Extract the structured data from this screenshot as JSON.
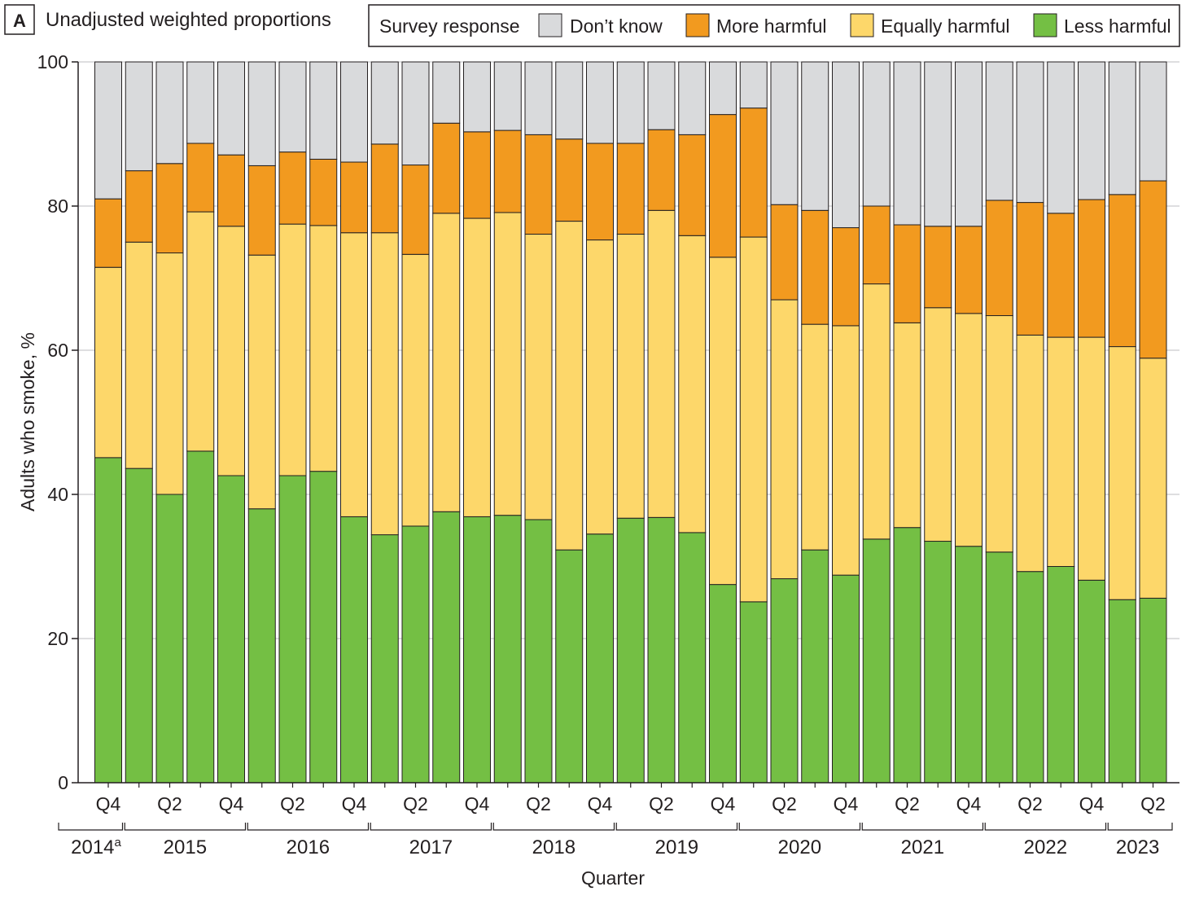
{
  "panel": {
    "letter": "A",
    "title": "Unadjusted weighted proportions"
  },
  "legend": {
    "title": "Survey response",
    "items": [
      {
        "label": "Don’t know",
        "color": "#d9dadc"
      },
      {
        "label": "More harmful",
        "color": "#f29a1f"
      },
      {
        "label": "Equally harmful",
        "color": "#fdd76a"
      },
      {
        "label": "Less harmful",
        "color": "#74bf44"
      }
    ]
  },
  "chart_data": {
    "type": "bar",
    "stacked": true,
    "title": "Unadjusted weighted proportions",
    "xlabel": "Quarter",
    "ylabel": "Adults who smoke, %",
    "ylim": [
      0,
      100
    ],
    "yticks": [
      0,
      20,
      40,
      60,
      80,
      100
    ],
    "grid": true,
    "legend_position": "top",
    "categories": [
      "2014 Q4",
      "2015 Q1",
      "2015 Q2",
      "2015 Q3",
      "2015 Q4",
      "2016 Q1",
      "2016 Q2",
      "2016 Q3",
      "2016 Q4",
      "2017 Q1",
      "2017 Q2",
      "2017 Q3",
      "2017 Q4",
      "2018 Q1",
      "2018 Q2",
      "2018 Q3",
      "2018 Q4",
      "2019 Q1",
      "2019 Q2",
      "2019 Q3",
      "2019 Q4",
      "2020 Q1",
      "2020 Q2",
      "2020 Q3",
      "2020 Q4",
      "2021 Q1",
      "2021 Q2",
      "2021 Q3",
      "2021 Q4",
      "2022 Q1",
      "2022 Q2",
      "2022 Q3",
      "2022 Q4",
      "2023 Q1",
      "2023 Q2"
    ],
    "x_tick_labels": [
      {
        "index": 0,
        "label": "Q4"
      },
      {
        "index": 2,
        "label": "Q2"
      },
      {
        "index": 4,
        "label": "Q4"
      },
      {
        "index": 6,
        "label": "Q2"
      },
      {
        "index": 8,
        "label": "Q4"
      },
      {
        "index": 10,
        "label": "Q2"
      },
      {
        "index": 12,
        "label": "Q4"
      },
      {
        "index": 14,
        "label": "Q2"
      },
      {
        "index": 16,
        "label": "Q4"
      },
      {
        "index": 18,
        "label": "Q2"
      },
      {
        "index": 20,
        "label": "Q4"
      },
      {
        "index": 22,
        "label": "Q2"
      },
      {
        "index": 24,
        "label": "Q4"
      },
      {
        "index": 26,
        "label": "Q2"
      },
      {
        "index": 28,
        "label": "Q4"
      },
      {
        "index": 30,
        "label": "Q2"
      },
      {
        "index": 32,
        "label": "Q4"
      },
      {
        "index": 34,
        "label": "Q2"
      }
    ],
    "years": [
      {
        "label": "2014",
        "superscript": "a",
        "start": 0,
        "end": 0
      },
      {
        "label": "2015",
        "start": 1,
        "end": 4
      },
      {
        "label": "2016",
        "start": 5,
        "end": 8
      },
      {
        "label": "2017",
        "start": 9,
        "end": 12
      },
      {
        "label": "2018",
        "start": 13,
        "end": 16
      },
      {
        "label": "2019",
        "start": 17,
        "end": 20
      },
      {
        "label": "2020",
        "start": 21,
        "end": 24
      },
      {
        "label": "2021",
        "start": 25,
        "end": 28
      },
      {
        "label": "2022",
        "start": 29,
        "end": 32
      },
      {
        "label": "2023",
        "start": 33,
        "end": 34
      }
    ],
    "series": [
      {
        "name": "Less harmful",
        "color": "#74bf44",
        "values": [
          45.1,
          43.6,
          40.0,
          46.0,
          42.6,
          38.0,
          42.6,
          43.2,
          36.9,
          34.4,
          35.6,
          37.6,
          36.9,
          37.1,
          36.5,
          32.3,
          34.5,
          36.7,
          36.8,
          34.7,
          27.5,
          25.1,
          28.3,
          32.3,
          28.8,
          33.8,
          35.4,
          33.5,
          32.8,
          32.0,
          29.3,
          30.0,
          28.1,
          25.4,
          25.6
        ]
      },
      {
        "name": "Equally harmful",
        "color": "#fdd76a",
        "values": [
          26.4,
          31.4,
          33.5,
          33.2,
          34.6,
          35.2,
          34.9,
          34.1,
          39.4,
          41.9,
          37.7,
          41.4,
          41.4,
          42.0,
          39.6,
          45.6,
          40.8,
          39.4,
          42.6,
          41.2,
          45.4,
          50.6,
          38.7,
          31.3,
          34.6,
          35.4,
          28.4,
          32.4,
          32.3,
          32.8,
          32.8,
          31.8,
          33.7,
          35.1,
          33.3
        ]
      },
      {
        "name": "More harmful",
        "color": "#f29a1f",
        "values": [
          9.5,
          9.9,
          12.4,
          9.5,
          9.9,
          12.4,
          10.0,
          9.2,
          9.8,
          12.3,
          12.4,
          12.5,
          12.0,
          11.4,
          13.8,
          11.4,
          13.4,
          12.6,
          11.2,
          14.0,
          19.8,
          17.9,
          13.2,
          15.8,
          13.6,
          10.8,
          13.6,
          11.3,
          12.1,
          16.0,
          18.4,
          17.2,
          19.1,
          21.1,
          24.6
        ]
      },
      {
        "name": "Don’t know",
        "color": "#d9dadc",
        "values": [
          19.0,
          15.1,
          14.1,
          11.3,
          12.9,
          14.4,
          12.5,
          13.5,
          13.9,
          11.4,
          14.3,
          8.5,
          9.7,
          9.5,
          10.1,
          10.7,
          11.3,
          11.3,
          9.4,
          10.1,
          7.3,
          6.4,
          19.8,
          20.6,
          23.0,
          20.0,
          22.6,
          22.8,
          22.8,
          19.2,
          19.5,
          21.0,
          19.1,
          18.4,
          16.5
        ]
      }
    ]
  }
}
